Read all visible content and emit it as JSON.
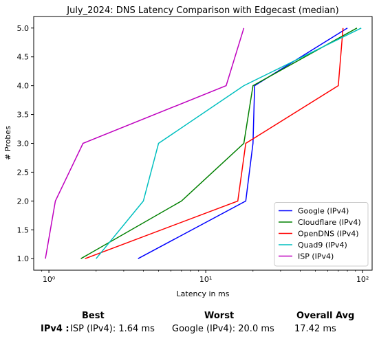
{
  "chart_data": {
    "type": "line",
    "title": "July_2024: DNS Latency Comparison with Edgecast (median)",
    "xlabel": "Latency in ms",
    "ylabel": "# Probes",
    "xscale": "log",
    "xlim": [
      0.8,
      115
    ],
    "ylim": [
      0.8,
      5.2
    ],
    "xticks": [
      1,
      10,
      100
    ],
    "xtick_labels": [
      "10⁰",
      "10¹",
      "10²"
    ],
    "yticks": [
      1.0,
      1.5,
      2.0,
      2.5,
      3.0,
      3.5,
      4.0,
      4.5,
      5.0
    ],
    "ytick_labels": [
      "1.0",
      "1.5",
      "2.0",
      "2.5",
      "3.0",
      "3.5",
      "4.0",
      "4.5",
      "5.0"
    ],
    "grid": false,
    "legend_position": "lower-right",
    "series": [
      {
        "name": "Google (IPv4)",
        "color": "#0000ff",
        "x": [
          3.7,
          18.0,
          20.0,
          20.5,
          80.0
        ],
        "y": [
          1,
          2,
          3,
          4,
          5
        ]
      },
      {
        "name": "Cloudflare (IPv4)",
        "color": "#008000",
        "x": [
          1.6,
          7.0,
          17.5,
          20.0,
          92.0
        ],
        "y": [
          1,
          2,
          3,
          4,
          5
        ]
      },
      {
        "name": "OpenDNS (IPv4)",
        "color": "#ff0000",
        "x": [
          1.7,
          16.0,
          18.0,
          70.0,
          75.0
        ],
        "y": [
          1,
          2,
          3,
          4,
          5
        ]
      },
      {
        "name": "Quad9 (IPv4)",
        "color": "#00bfbf",
        "x": [
          2.0,
          4.0,
          5.0,
          17.5,
          98.0
        ],
        "y": [
          1,
          2,
          3,
          4,
          5
        ]
      },
      {
        "name": "ISP (IPv4)",
        "color": "#bf00bf",
        "x": [
          0.95,
          1.1,
          1.65,
          13.5,
          17.5
        ],
        "y": [
          1,
          2,
          3,
          4,
          5
        ]
      }
    ]
  },
  "summary": {
    "best_header": "Best",
    "worst_header": "Worst",
    "avg_header": "Overall Avg",
    "row_label": "IPv4 :",
    "best_value": "ISP (IPv4): 1.64 ms",
    "worst_value": "Google (IPv4): 20.0 ms",
    "avg_value": "17.42 ms"
  }
}
